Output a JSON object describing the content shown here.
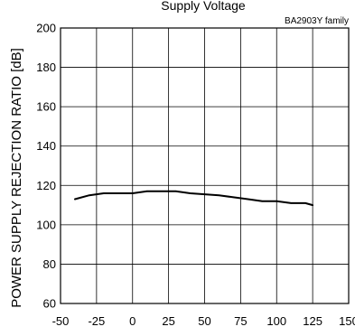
{
  "chart_data": {
    "type": "line",
    "title": "Supply Voltage",
    "annotation": "BA2903Y family",
    "xlabel": "",
    "ylabel": "POWER SUPPLY REJECTION RATIO [dB]",
    "xlim": [
      -50,
      150
    ],
    "ylim": [
      60,
      200
    ],
    "xticks": [
      -50,
      -25,
      0,
      25,
      50,
      75,
      100,
      125,
      150
    ],
    "yticks": [
      60,
      80,
      100,
      120,
      140,
      160,
      180,
      200
    ],
    "grid": true,
    "series": [
      {
        "x": [
          -40,
          -30,
          -20,
          -10,
          0,
          10,
          20,
          30,
          40,
          50,
          60,
          70,
          80,
          90,
          100,
          110,
          120,
          125
        ],
        "y": [
          113,
          115,
          116,
          116,
          116,
          117,
          117,
          117,
          116,
          115.5,
          115,
          114,
          113,
          112,
          112,
          111,
          111,
          110
        ],
        "color": "#000000"
      }
    ]
  }
}
